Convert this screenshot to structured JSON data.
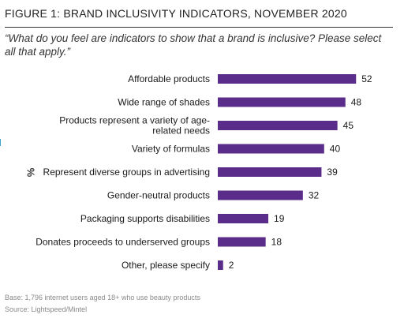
{
  "figure": {
    "title": "FIGURE 1: BRAND INCLUSIVITY INDICATORS, NOVEMBER 2020",
    "question": "“What do you feel are indicators to show that a brand is inclusive? Please select all that apply.”",
    "base": "Base: 1,796 internet users aged 18+ who use beauty products",
    "source": "Source: Lightspeed/Mintel"
  },
  "chart_data": {
    "type": "bar",
    "orientation": "horizontal",
    "unit_label": "%",
    "categories": [
      [
        "Affordable products"
      ],
      [
        "Wide range of shades"
      ],
      [
        "Products represent a variety of age-",
        "related needs"
      ],
      [
        "Variety of formulas"
      ],
      [
        "Represent diverse groups in advertising"
      ],
      [
        "Gender-neutral products"
      ],
      [
        "Packaging supports disabilities"
      ],
      [
        "Donates proceeds to underserved groups"
      ],
      [
        "Other, please specify"
      ]
    ],
    "values": [
      52,
      48,
      45,
      40,
      39,
      32,
      19,
      18,
      2
    ],
    "xlim": [
      0,
      60
    ],
    "bar_color": "#5b2d8a",
    "grid": false,
    "legend": "none"
  }
}
